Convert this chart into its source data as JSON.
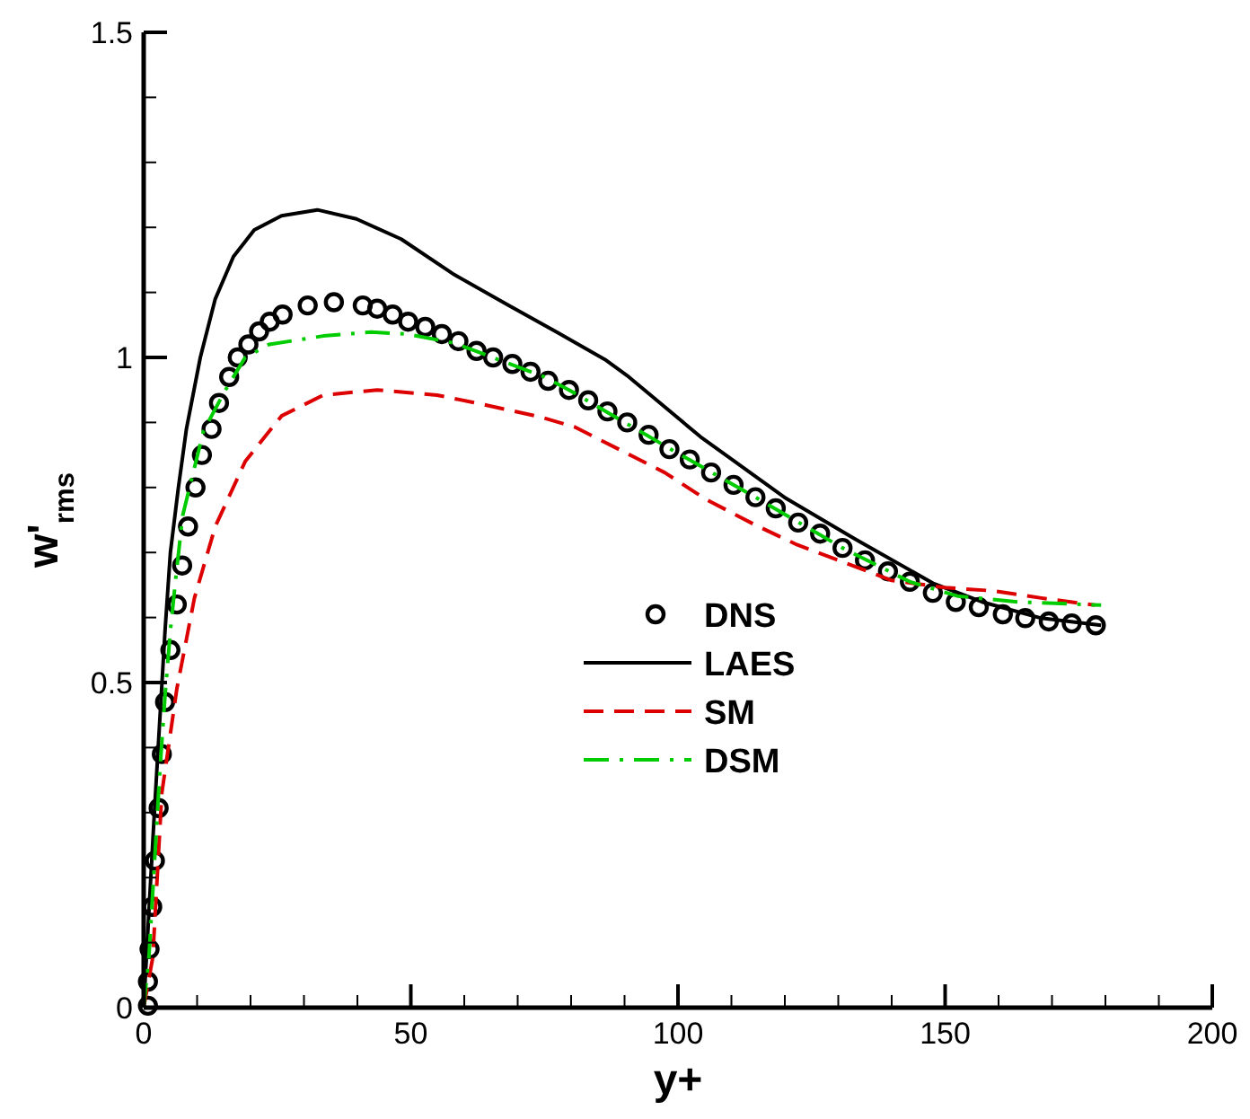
{
  "chart_data": {
    "type": "line",
    "xlabel": "y+",
    "ylabel": "w'$_{rms}$",
    "xlim": [
      0,
      200
    ],
    "ylim": [
      0,
      1.5
    ],
    "xticks": [
      0,
      {
        "value": 10,
        "label": null
      },
      {
        "value": 20,
        "label": null
      },
      {
        "value": 30,
        "label": null
      },
      {
        "value": 40,
        "label": null
      },
      50,
      {
        "value": 60,
        "label": null
      },
      {
        "value": 70,
        "label": null
      },
      {
        "value": 80,
        "label": null
      },
      {
        "value": 90,
        "label": null
      },
      100,
      {
        "value": 110,
        "label": null
      },
      {
        "value": 120,
        "label": null
      },
      {
        "value": 130,
        "label": null
      },
      {
        "value": 140,
        "label": null
      },
      150,
      {
        "value": 160,
        "label": null
      },
      {
        "value": 170,
        "label": null
      },
      {
        "value": 180,
        "label": null
      },
      {
        "value": 190,
        "label": null
      },
      200
    ],
    "yticks": [
      0,
      {
        "value": 0.1,
        "label": null
      },
      {
        "value": 0.2,
        "label": null
      },
      {
        "value": 0.3,
        "label": null
      },
      {
        "value": 0.4,
        "label": null
      },
      0.5,
      {
        "value": 0.6,
        "label": null
      },
      {
        "value": 0.7,
        "label": null
      },
      {
        "value": 0.8,
        "label": null
      },
      {
        "value": 0.9,
        "label": null
      },
      1,
      {
        "value": 1.1,
        "label": null
      },
      {
        "value": 1.2,
        "label": null
      },
      {
        "value": 1.3,
        "label": null
      },
      {
        "value": 1.4,
        "label": null
      },
      1.5
    ],
    "legend": "center",
    "grid": false,
    "series": [
      {
        "name": "DNS",
        "type": "scatter",
        "marker": "circle",
        "color": "#000000",
        "x": [
          0.8,
          0.8,
          1.1,
          1.6,
          2.1,
          2.8,
          3.4,
          4.0,
          5.0,
          6.2,
          7.2,
          8.3,
          9.7,
          10.9,
          12.7,
          14.1,
          16.0,
          17.6,
          19.6,
          21.6,
          23.6,
          26.0,
          30.7,
          35.6,
          41.0,
          43.7,
          46.6,
          49.5,
          52.7,
          55.8,
          58.9,
          62.3,
          65.4,
          69.0,
          72.4,
          75.7,
          79.6,
          83.2,
          86.8,
          90.5,
          94.5,
          98.4,
          102.2,
          106.2,
          110.4,
          114.5,
          118.3,
          122.5,
          126.6,
          130.8,
          135.0,
          139.3,
          143.4,
          147.7,
          152.0,
          156.3,
          160.8,
          165.0,
          169.4,
          173.7,
          178.2
        ],
        "values": [
          0.003,
          0.04,
          0.09,
          0.155,
          0.226,
          0.307,
          0.39,
          0.47,
          0.55,
          0.62,
          0.68,
          0.74,
          0.8,
          0.85,
          0.89,
          0.93,
          0.97,
          1.0,
          1.02,
          1.04,
          1.055,
          1.066,
          1.08,
          1.085,
          1.08,
          1.075,
          1.066,
          1.055,
          1.047,
          1.036,
          1.025,
          1.01,
          1.0,
          0.99,
          0.978,
          0.964,
          0.95,
          0.934,
          0.917,
          0.9,
          0.881,
          0.859,
          0.843,
          0.823,
          0.804,
          0.785,
          0.768,
          0.746,
          0.729,
          0.707,
          0.688,
          0.671,
          0.655,
          0.638,
          0.624,
          0.616,
          0.605,
          0.599,
          0.594,
          0.591,
          0.588
        ]
      },
      {
        "name": "LAES",
        "type": "line",
        "line_style": "solid",
        "color": "#000000",
        "x": [
          0,
          1,
          2,
          3,
          4,
          5,
          6.5,
          8,
          10.6,
          13.4,
          16.8,
          20.7,
          25.8,
          32.5,
          39.8,
          48.2,
          58.2,
          68.3,
          77.3,
          86.3,
          90.8,
          104.2,
          119.9,
          133.3,
          147.9,
          156.9,
          168,
          179.2
        ],
        "values": [
          0,
          0.15,
          0.3,
          0.44,
          0.58,
          0.7,
          0.8,
          0.89,
          1.0,
          1.09,
          1.155,
          1.196,
          1.218,
          1.227,
          1.213,
          1.182,
          1.127,
          1.08,
          1.039,
          0.997,
          0.97,
          0.878,
          0.785,
          0.72,
          0.652,
          0.624,
          0.599,
          0.588
        ]
      },
      {
        "name": "SM",
        "type": "line",
        "line_style": "dashed",
        "color": "#dd0000",
        "x": [
          0,
          1.7,
          3.4,
          6.2,
          9.5,
          13.4,
          19,
          25.8,
          33.6,
          43.7,
          54.9,
          61.6,
          74,
          80.7,
          97.5,
          105.2,
          114.3,
          122,
          131,
          140,
          150,
          159,
          168,
          178
        ],
        "values": [
          0,
          0.077,
          0.33,
          0.49,
          0.63,
          0.74,
          0.84,
          0.91,
          0.942,
          0.95,
          0.942,
          0.931,
          0.909,
          0.893,
          0.823,
          0.782,
          0.743,
          0.713,
          0.685,
          0.657,
          0.646,
          0.641,
          0.63,
          0.619
        ]
      },
      {
        "name": "DSM",
        "type": "line",
        "line_style": "dashdot",
        "color": "#00cc00",
        "x": [
          0,
          1,
          2,
          3,
          4,
          5,
          6,
          7.3,
          11.2,
          15.1,
          19,
          23.5,
          33.6,
          42.6,
          49.3,
          58.2,
          75,
          79.6,
          98.4,
          114.5,
          130.8,
          143.4,
          152.3,
          163.6,
          179.2
        ],
        "values": [
          0,
          0.08,
          0.22,
          0.36,
          0.48,
          0.58,
          0.66,
          0.757,
          0.887,
          0.947,
          1.0,
          1.02,
          1.033,
          1.039,
          1.036,
          1.022,
          0.97,
          0.95,
          0.86,
          0.785,
          0.707,
          0.655,
          0.633,
          0.624,
          0.619
        ]
      }
    ]
  }
}
